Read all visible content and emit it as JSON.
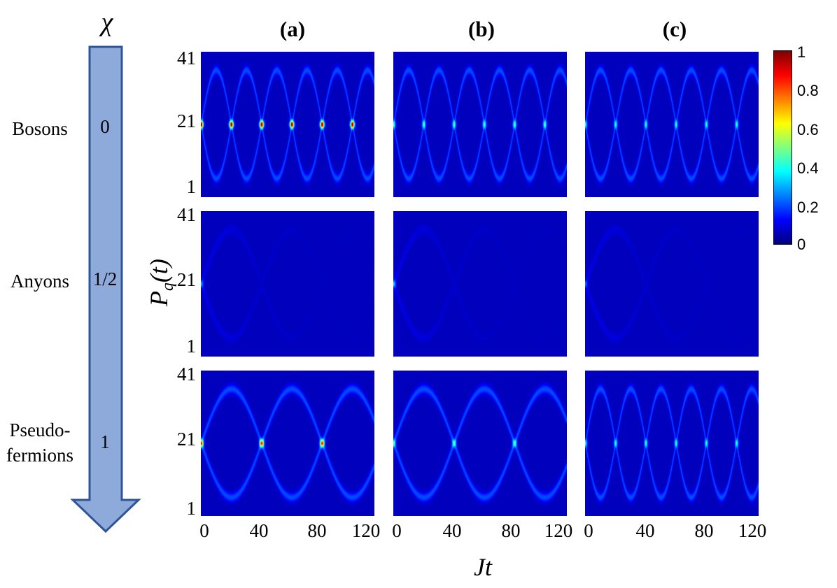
{
  "chi_symbol": "χ",
  "column_titles": [
    "(a)",
    "(b)",
    "(c)"
  ],
  "rows": [
    {
      "label": "Bosons",
      "chi": "0"
    },
    {
      "label": "Anyons",
      "chi": "1/2"
    },
    {
      "label_lines": [
        "Pseudo-",
        "fermions"
      ],
      "chi": "1"
    }
  ],
  "y_ticks": [
    "41",
    "21",
    "1"
  ],
  "x_ticks": [
    "0",
    "40",
    "80",
    "120"
  ],
  "ylabel": {
    "main": "P",
    "sub": "q",
    "arg": "(t)"
  },
  "xlabel": "Jt",
  "colorbar": {
    "ticks": [
      "1",
      "0.8",
      "0.6",
      "0.4",
      "0.2",
      "0"
    ],
    "range": [
      0,
      1
    ],
    "colormap": "jet"
  },
  "colors": {
    "arrow_fill": "#8eaadb",
    "arrow_stroke": "#2f5597",
    "background": "#00008f"
  },
  "chart_data": {
    "type": "heatmap",
    "x_range": [
      0,
      120
    ],
    "y_range": [
      1,
      41
    ],
    "color_range": [
      0,
      1
    ],
    "panels": [
      {
        "row": "Bosons",
        "col": "(a)",
        "focus_times": [
          0,
          21,
          42,
          63,
          84,
          105
        ],
        "peak_site": 21,
        "max_value": 0.9
      },
      {
        "row": "Bosons",
        "col": "(b)",
        "focus_times": [
          0,
          21,
          42,
          63,
          84,
          105
        ],
        "peak_site": 21,
        "max_value": 0.35
      },
      {
        "row": "Bosons",
        "col": "(c)",
        "focus_times": [
          0,
          21,
          42,
          63,
          84,
          105
        ],
        "peak_site": 21,
        "max_value": 0.3
      },
      {
        "row": "Anyons",
        "col": "(a)",
        "focus_times": [
          0
        ],
        "peak_site": 21,
        "max_value": 0.25
      },
      {
        "row": "Anyons",
        "col": "(b)",
        "focus_times": [
          0
        ],
        "peak_site": 21,
        "max_value": 0.3
      },
      {
        "row": "Anyons",
        "col": "(c)",
        "focus_times": [
          0
        ],
        "peak_site": 21,
        "max_value": 0.2
      },
      {
        "row": "Pseudo-fermions",
        "col": "(a)",
        "focus_times": [
          0,
          42,
          84
        ],
        "peak_site": 21,
        "max_value": 0.75
      },
      {
        "row": "Pseudo-fermions",
        "col": "(b)",
        "focus_times": [
          0,
          42,
          84
        ],
        "peak_site": 21,
        "max_value": 0.35
      },
      {
        "row": "Pseudo-fermions",
        "col": "(c)",
        "focus_times": [
          0,
          21,
          42,
          63,
          84,
          105
        ],
        "peak_site": 21,
        "max_value": 0.3
      }
    ]
  }
}
